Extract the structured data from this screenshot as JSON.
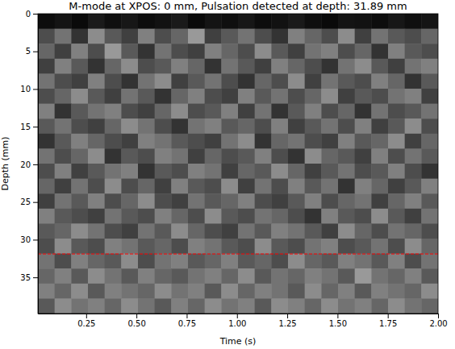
{
  "chart_data": {
    "type": "heatmap",
    "title": "M-mode at XPOS: 0 mm, Pulsation detected at depth: 31.89 mm",
    "xlabel": "Time (s)",
    "ylabel": "Depth (mm)",
    "xlim": [
      0.01,
      2.0
    ],
    "ylim": [
      0,
      39.8
    ],
    "xticks": [
      0.25,
      {
        "value": 0.5,
        "label": "0.50"
      },
      0.75,
      {
        "value": 1.0,
        "label": "1.00"
      },
      1.25,
      {
        "value": 1.5,
        "label": "1.50"
      },
      1.75,
      {
        "value": 2.0,
        "label": "2.00"
      }
    ],
    "yticks": [
      0,
      5,
      10,
      15,
      20,
      25,
      30,
      35
    ],
    "hline": 31.89,
    "cells": [
      [
        0.05,
        0.08,
        0.04,
        0.1,
        0.06,
        0.09,
        0.05,
        0.07,
        0.1,
        0.04,
        0.08,
        0.06,
        0.09,
        0.05,
        0.07,
        0.1,
        0.06,
        0.04,
        0.08,
        0.07,
        0.05,
        0.09,
        0.06,
        0.08
      ],
      [
        0.3,
        0.45,
        0.2,
        0.55,
        0.35,
        0.25,
        0.5,
        0.3,
        0.4,
        0.6,
        0.25,
        0.35,
        0.45,
        0.3,
        0.2,
        0.5,
        0.4,
        0.3,
        0.55,
        0.25,
        0.45,
        0.35,
        0.3,
        0.4
      ],
      [
        0.4,
        0.25,
        0.5,
        0.3,
        0.6,
        0.35,
        0.2,
        0.45,
        0.3,
        0.25,
        0.5,
        0.4,
        0.3,
        0.55,
        0.35,
        0.25,
        0.45,
        0.5,
        0.3,
        0.4,
        0.2,
        0.5,
        0.35,
        0.3
      ],
      [
        0.25,
        0.5,
        0.35,
        0.2,
        0.4,
        0.55,
        0.3,
        0.35,
        0.5,
        0.4,
        0.2,
        0.45,
        0.35,
        0.25,
        0.5,
        0.4,
        0.3,
        0.2,
        0.45,
        0.55,
        0.35,
        0.25,
        0.45,
        0.5
      ],
      [
        0.45,
        0.3,
        0.25,
        0.5,
        0.3,
        0.2,
        0.45,
        0.55,
        0.25,
        0.35,
        0.45,
        0.3,
        0.2,
        0.4,
        0.3,
        0.55,
        0.25,
        0.45,
        0.35,
        0.3,
        0.5,
        0.4,
        0.2,
        0.35
      ],
      [
        0.3,
        0.4,
        0.55,
        0.35,
        0.25,
        0.45,
        0.35,
        0.2,
        0.4,
        0.5,
        0.3,
        0.25,
        0.5,
        0.35,
        0.45,
        0.3,
        0.4,
        0.55,
        0.25,
        0.35,
        0.3,
        0.45,
        0.5,
        0.25
      ],
      [
        0.5,
        0.2,
        0.35,
        0.45,
        0.5,
        0.3,
        0.25,
        0.4,
        0.55,
        0.3,
        0.35,
        0.5,
        0.25,
        0.45,
        0.2,
        0.35,
        0.5,
        0.3,
        0.4,
        0.2,
        0.45,
        0.3,
        0.35,
        0.45
      ],
      [
        0.35,
        0.45,
        0.3,
        0.25,
        0.4,
        0.55,
        0.45,
        0.3,
        0.2,
        0.45,
        0.5,
        0.35,
        0.4,
        0.3,
        0.5,
        0.25,
        0.35,
        0.45,
        0.3,
        0.5,
        0.25,
        0.35,
        0.55,
        0.3
      ],
      [
        0.2,
        0.35,
        0.5,
        0.4,
        0.3,
        0.25,
        0.5,
        0.45,
        0.35,
        0.3,
        0.25,
        0.45,
        0.55,
        0.2,
        0.4,
        0.45,
        0.3,
        0.25,
        0.5,
        0.35,
        0.4,
        0.55,
        0.25,
        0.4
      ],
      [
        0.45,
        0.3,
        0.4,
        0.55,
        0.2,
        0.35,
        0.3,
        0.5,
        0.45,
        0.25,
        0.4,
        0.3,
        0.35,
        0.5,
        0.3,
        0.2,
        0.55,
        0.4,
        0.35,
        0.25,
        0.5,
        0.3,
        0.45,
        0.35
      ],
      [
        0.3,
        0.5,
        0.25,
        0.35,
        0.45,
        0.5,
        0.2,
        0.35,
        0.3,
        0.5,
        0.45,
        0.25,
        0.4,
        0.35,
        0.55,
        0.4,
        0.25,
        0.35,
        0.45,
        0.3,
        0.35,
        0.5,
        0.3,
        0.2
      ],
      [
        0.4,
        0.25,
        0.45,
        0.3,
        0.55,
        0.3,
        0.4,
        0.25,
        0.5,
        0.35,
        0.3,
        0.55,
        0.25,
        0.45,
        0.3,
        0.5,
        0.35,
        0.45,
        0.2,
        0.5,
        0.4,
        0.25,
        0.35,
        0.5
      ],
      [
        0.25,
        0.45,
        0.35,
        0.5,
        0.3,
        0.4,
        0.55,
        0.3,
        0.25,
        0.45,
        0.35,
        0.4,
        0.5,
        0.3,
        0.25,
        0.35,
        0.5,
        0.3,
        0.4,
        0.45,
        0.25,
        0.4,
        0.5,
        0.35
      ],
      [
        0.5,
        0.35,
        0.3,
        0.25,
        0.45,
        0.35,
        0.3,
        0.5,
        0.4,
        0.3,
        0.55,
        0.35,
        0.3,
        0.45,
        0.4,
        0.3,
        0.2,
        0.5,
        0.35,
        0.3,
        0.55,
        0.35,
        0.25,
        0.45
      ],
      [
        0.35,
        0.4,
        0.55,
        0.45,
        0.3,
        0.25,
        0.45,
        0.35,
        0.55,
        0.4,
        0.3,
        0.25,
        0.45,
        0.35,
        0.5,
        0.45,
        0.35,
        0.25,
        0.55,
        0.4,
        0.3,
        0.45,
        0.4,
        0.3
      ],
      [
        0.3,
        0.55,
        0.35,
        0.3,
        0.5,
        0.45,
        0.35,
        0.4,
        0.3,
        0.5,
        0.45,
        0.35,
        0.3,
        0.55,
        0.35,
        0.3,
        0.45,
        0.5,
        0.3,
        0.35,
        0.45,
        0.3,
        0.55,
        0.4
      ],
      [
        0.45,
        0.3,
        0.5,
        0.4,
        0.35,
        0.55,
        0.3,
        0.45,
        0.5,
        0.35,
        0.4,
        0.5,
        0.35,
        0.4,
        0.3,
        0.55,
        0.4,
        0.35,
        0.5,
        0.45,
        0.35,
        0.5,
        0.3,
        0.45
      ],
      [
        0.4,
        0.5,
        0.35,
        0.55,
        0.45,
        0.35,
        0.5,
        0.4,
        0.35,
        0.45,
        0.5,
        0.4,
        0.55,
        0.35,
        0.45,
        0.4,
        0.5,
        0.45,
        0.35,
        0.6,
        0.45,
        0.4,
        0.5,
        0.35
      ],
      [
        0.5,
        0.4,
        0.55,
        0.35,
        0.5,
        0.45,
        0.4,
        0.55,
        0.45,
        0.5,
        0.35,
        0.55,
        0.4,
        0.5,
        0.45,
        0.35,
        0.55,
        0.4,
        0.5,
        0.35,
        0.5,
        0.45,
        0.4,
        0.55
      ],
      [
        0.35,
        0.55,
        0.45,
        0.5,
        0.4,
        0.55,
        0.45,
        0.35,
        0.5,
        0.4,
        0.55,
        0.45,
        0.5,
        0.35,
        0.55,
        0.5,
        0.4,
        0.55,
        0.45,
        0.5,
        0.4,
        0.55,
        0.45,
        0.4
      ]
    ]
  }
}
